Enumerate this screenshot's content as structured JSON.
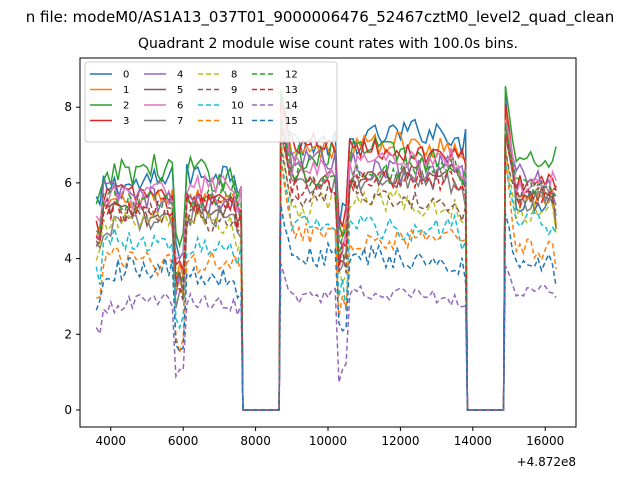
{
  "figure": {
    "suptitle": "n file: modeM0/AS1A13_037T01_9000006476_52467cztM0_level2_quad_clean",
    "title": "Quadrant 2 module wise count rates with 100.0s bins.",
    "x_offset_label": "+4.872e8"
  },
  "chart_data": {
    "type": "line",
    "title": "Quadrant 2 module wise count rates with 100.0s bins.",
    "xlabel": "",
    "ylabel": "",
    "x_offset": "+4.872e8",
    "xlim": [
      3150,
      16850
    ],
    "ylim": [
      -0.45,
      9.3
    ],
    "xticks": [
      4000,
      6000,
      8000,
      10000,
      12000,
      14000,
      16000
    ],
    "yticks": [
      0,
      2,
      4,
      6,
      8
    ],
    "grid": false,
    "legend": {
      "placement": "top-left",
      "columns": 4
    },
    "segments": [
      {
        "start": 3600,
        "end": 7600
      },
      {
        "start": 8700,
        "end": 13800
      },
      {
        "start": 14900,
        "end": 16350
      }
    ],
    "gaps": [
      [
        7650,
        8650
      ],
      [
        13850,
        14850
      ]
    ],
    "series": [
      {
        "name": "0",
        "color": "#1f77b4",
        "style": "solid",
        "level": [
          6.1,
          7.2,
          5.7
        ],
        "noise": 0.35,
        "peak": 8.2
      },
      {
        "name": "1",
        "color": "#ff7f0e",
        "style": "solid",
        "level": [
          5.5,
          6.9,
          5.6
        ],
        "noise": 0.3,
        "peak": 7.9
      },
      {
        "name": "2",
        "color": "#2ca02c",
        "style": "solid",
        "level": [
          6.2,
          6.7,
          6.6
        ],
        "noise": 0.4,
        "peak": 8.4
      },
      {
        "name": "3",
        "color": "#d62728",
        "style": "solid",
        "level": [
          5.6,
          6.9,
          5.9
        ],
        "noise": 0.3,
        "peak": 8.1
      },
      {
        "name": "4",
        "color": "#9467bd",
        "style": "solid",
        "level": [
          5.6,
          6.5,
          6.0
        ],
        "noise": 0.35,
        "peak": 7.7
      },
      {
        "name": "5",
        "color": "#8c564b",
        "style": "solid",
        "level": [
          5.3,
          6.2,
          5.8
        ],
        "noise": 0.3,
        "peak": 7.5
      },
      {
        "name": "6",
        "color": "#e377c2",
        "style": "solid",
        "level": [
          5.8,
          6.5,
          6.2
        ],
        "noise": 0.35,
        "peak": 7.8
      },
      {
        "name": "7",
        "color": "#7f7f7f",
        "style": "solid",
        "level": [
          5.0,
          6.0,
          5.6
        ],
        "noise": 0.3,
        "peak": 7.2
      },
      {
        "name": "8",
        "color": "#bcbd22",
        "style": "dashed",
        "level": [
          4.9,
          5.4,
          5.2
        ],
        "noise": 0.3,
        "peak": 7.0
      },
      {
        "name": "9",
        "color": "#8c564b",
        "style": "dashed",
        "level": [
          5.1,
          5.6,
          5.6
        ],
        "noise": 0.3,
        "peak": 6.8
      },
      {
        "name": "10",
        "color": "#17becf",
        "style": "dashed",
        "level": [
          4.4,
          4.9,
          4.8
        ],
        "noise": 0.3,
        "peak": 6.6
      },
      {
        "name": "11",
        "color": "#ff7f0e",
        "style": "dashed",
        "level": [
          4.0,
          4.6,
          4.3
        ],
        "noise": 0.3,
        "peak": 6.5
      },
      {
        "name": "12",
        "color": "#2ca02c",
        "style": "dashed",
        "level": [
          5.6,
          6.3,
          6.0
        ],
        "noise": 0.3,
        "peak": 7.6
      },
      {
        "name": "13",
        "color": "#d62728",
        "style": "dashed",
        "level": [
          5.3,
          6.0,
          5.8
        ],
        "noise": 0.3,
        "peak": 7.4
      },
      {
        "name": "14",
        "color": "#9467bd",
        "style": "dashed",
        "level": [
          2.8,
          3.0,
          3.2
        ],
        "noise": 0.2,
        "peak": 3.8
      },
      {
        "name": "15",
        "color": "#1f77b4",
        "style": "dashed",
        "level": [
          3.6,
          4.0,
          3.7
        ],
        "noise": 0.3,
        "peak": 5.3
      }
    ]
  }
}
